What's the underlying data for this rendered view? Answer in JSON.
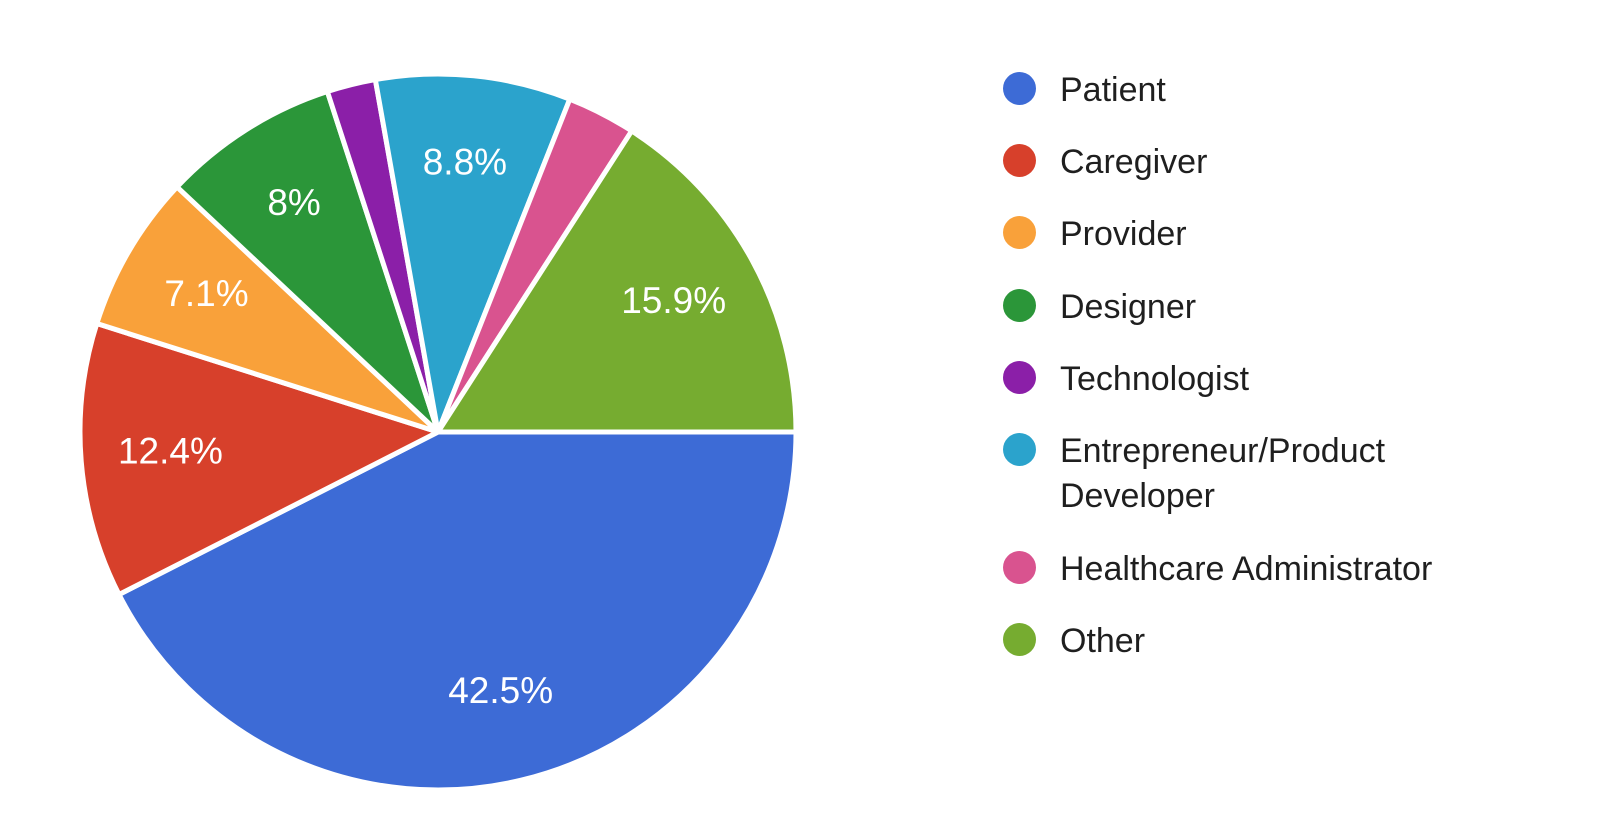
{
  "chart_data": {
    "type": "pie",
    "title": "",
    "legend_position": "right",
    "start_angle_deg": 0,
    "direction": "clockwise",
    "background": "#ffffff",
    "label_color": "#ffffff",
    "legend_text_color": "#1f1f1f",
    "slices": [
      {
        "label": "Patient",
        "value": 42.5,
        "display": "42.5%",
        "color": "#3d6bd6"
      },
      {
        "label": "Caregiver",
        "value": 12.4,
        "display": "12.4%",
        "color": "#d7402b"
      },
      {
        "label": "Provider",
        "value": 7.1,
        "display": "7.1%",
        "color": "#f9a13a"
      },
      {
        "label": "Designer",
        "value": 8.0,
        "display": "8%",
        "color": "#2b9639"
      },
      {
        "label": "Technologist",
        "value": 2.2,
        "display": "",
        "color": "#8b1fa8"
      },
      {
        "label": "Entrepreneur/Product Developer",
        "value": 8.8,
        "display": "8.8%",
        "color": "#2ba3cc"
      },
      {
        "label": "Healthcare Administrator",
        "value": 3.1,
        "display": "",
        "color": "#d9538f"
      },
      {
        "label": "Other",
        "value": 15.9,
        "display": "15.9%",
        "color": "#76ac30"
      }
    ]
  }
}
